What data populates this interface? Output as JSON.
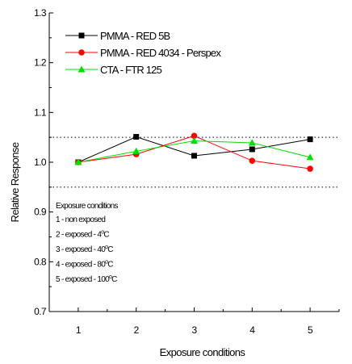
{
  "chart_data": {
    "type": "line",
    "title": "",
    "xlabel": "Exposure conditions",
    "ylabel": "Relative Response",
    "x": [
      1,
      2,
      3,
      4,
      5
    ],
    "xlim": [
      0.5,
      5.5
    ],
    "ylim": [
      0.7,
      1.3
    ],
    "x_ticks": [
      "1",
      "2",
      "3",
      "4",
      "5"
    ],
    "y_ticks": [
      "0.7",
      "0.8",
      "0.9",
      "1.0",
      "1.1",
      "1.2",
      "1.3"
    ],
    "grid": false,
    "reference_lines": [
      0.95,
      1.05
    ],
    "legend_position": "top-left",
    "series": [
      {
        "name": "PMMA - RED 5B",
        "values": [
          1.0,
          1.051,
          1.013,
          1.026,
          1.046
        ],
        "color": "#000000",
        "marker": "square"
      },
      {
        "name": "PMMA - RED 4034 - Perspex",
        "values": [
          1.0,
          1.016,
          1.053,
          1.003,
          0.987
        ],
        "color": "#ff0000",
        "marker": "circle"
      },
      {
        "name": "CTA    - FTR 125",
        "values": [
          1.0,
          1.022,
          1.043,
          1.039,
          1.01
        ],
        "color": "#00dd00",
        "marker": "triangle"
      }
    ],
    "annotation": {
      "title": "Exposure conditions",
      "lines": [
        {
          "text": "1 - non exposed",
          "sup": "",
          "after": ""
        },
        {
          "text": "2 - exposed - 4",
          "sup": "o",
          "after": "C"
        },
        {
          "text": "3 - exposed - 40",
          "sup": "o",
          "after": "C"
        },
        {
          "text": "4 - exposed - 80",
          "sup": "o",
          "after": "C"
        },
        {
          "text": "5 - exposed - 100",
          "sup": "o",
          "after": "C"
        }
      ]
    }
  }
}
